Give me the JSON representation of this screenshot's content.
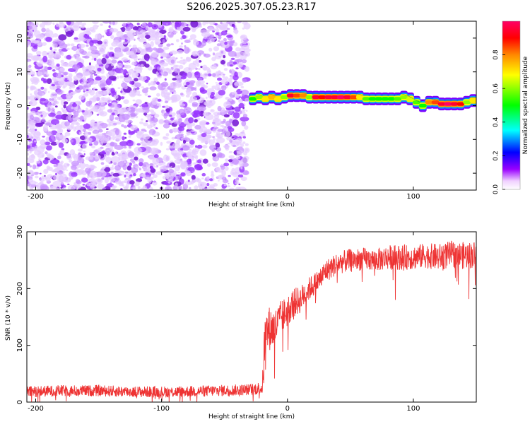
{
  "title": "S206.2025.307.05.23.R17",
  "chart_data": [
    {
      "type": "heatmap",
      "title": "S206.2025.307.05.23.R17",
      "xlabel": "Height of straight line (km)",
      "ylabel": "Frequency (Hz)",
      "xlim": [
        -207,
        150
      ],
      "ylim": [
        -25,
        25
      ],
      "xticks": [
        -200,
        -100,
        0,
        100
      ],
      "yticks": [
        -20,
        -10,
        0,
        10,
        20
      ],
      "noise_region_x": [
        -207,
        -32
      ],
      "signal_track": {
        "x": [
          -30,
          -25,
          -20,
          -15,
          -10,
          -5,
          0,
          5,
          10,
          15,
          20,
          25,
          30,
          35,
          40,
          45,
          50,
          55,
          60,
          65,
          70,
          75,
          80,
          85,
          90,
          95,
          100,
          105,
          110,
          115,
          120,
          125,
          130,
          135,
          140,
          145,
          150
        ],
        "freq_hz": [
          2.0,
          2.5,
          2.0,
          2.5,
          2.0,
          2.5,
          3.0,
          3.0,
          3.0,
          2.5,
          2.5,
          2.5,
          2.5,
          2.5,
          2.5,
          2.5,
          2.5,
          2.5,
          2.0,
          2.0,
          2.0,
          2.0,
          2.0,
          2.0,
          2.5,
          2.0,
          1.0,
          0.0,
          1.0,
          1.0,
          0.5,
          0.5,
          0.5,
          0.5,
          1.0,
          1.5,
          1.5
        ],
        "amplitude": [
          0.5,
          0.6,
          0.7,
          0.75,
          0.7,
          0.6,
          0.95,
          0.85,
          0.8,
          0.6,
          0.95,
          0.9,
          0.95,
          0.95,
          1.0,
          0.95,
          0.85,
          0.7,
          0.55,
          0.5,
          0.5,
          0.5,
          0.5,
          0.55,
          0.6,
          0.65,
          0.55,
          0.5,
          0.8,
          0.85,
          0.95,
          1.0,
          0.95,
          0.9,
          0.6,
          0.7,
          0.75
        ]
      },
      "colorbar": {
        "label": "Normalized spectral amplitude",
        "ticks": [
          0.0,
          0.2,
          0.4,
          0.6,
          0.8
        ],
        "range": [
          0.0,
          1.0
        ],
        "colors": [
          "#ffffff",
          "#f0d0ff",
          "#9900ff",
          "#0000ff",
          "#00ffff",
          "#00ff00",
          "#ffff00",
          "#ff8800",
          "#ff0000",
          "#ff0066"
        ]
      }
    },
    {
      "type": "line",
      "xlabel": "Height of straight line (km)",
      "ylabel": "SNR (10 * v/v)",
      "xlim": [
        -207,
        150
      ],
      "ylim": [
        0,
        300
      ],
      "xticks": [
        -200,
        -100,
        0,
        100
      ],
      "yticks": [
        0,
        100,
        200,
        300
      ],
      "color": "#ee3333",
      "x": [
        -207,
        -180,
        -150,
        -120,
        -90,
        -60,
        -30,
        -20,
        -19,
        -18,
        -15,
        -10,
        -5,
        0,
        5,
        10,
        15,
        20,
        25,
        30,
        40,
        50,
        60,
        70,
        80,
        90,
        100,
        110,
        120,
        130,
        140,
        150
      ],
      "snr": [
        18,
        20,
        20,
        18,
        18,
        20,
        22,
        25,
        60,
        110,
        130,
        130,
        150,
        160,
        175,
        180,
        195,
        205,
        215,
        230,
        245,
        250,
        252,
        250,
        255,
        255,
        255,
        258,
        255,
        260,
        258,
        260
      ],
      "noise_amplitude": [
        10,
        10,
        10,
        10,
        10,
        10,
        10,
        12,
        40,
        45,
        40,
        35,
        30,
        28,
        26,
        24,
        22,
        20,
        20,
        20,
        20,
        20,
        20,
        20,
        22,
        22,
        22,
        22,
        24,
        24,
        24,
        24
      ]
    }
  ]
}
